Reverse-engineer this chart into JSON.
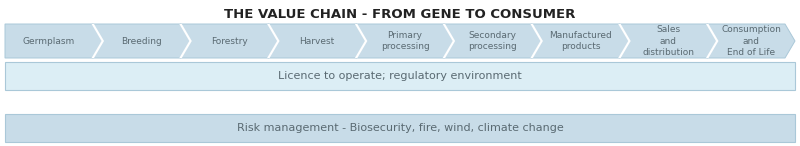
{
  "title": "THE VALUE CHAIN - FROM GENE TO CONSUMER",
  "title_fontsize": 9.5,
  "title_fontweight": "bold",
  "arrow_labels": [
    "Germplasm",
    "Breeding",
    "Forestry",
    "Harvest",
    "Primary\nprocessing",
    "Secondary\nprocessing",
    "Manufactured\nproducts",
    "Sales\nand\ndistribution",
    "Consumption\nand\nEnd of Life"
  ],
  "bar1_text": "Licence to operate; regulatory environment",
  "bar2_text": "Risk management - Biosecurity, fire, wind, climate change",
  "arrow_fill": "#c8dce8",
  "arrow_edge": "#aac8d8",
  "bar1_fill": "#dceef5",
  "bar2_fill": "#c8dce8",
  "text_color": "#5a6a72",
  "bar_text_color": "#5a6a72",
  "background": "#ffffff",
  "label_fontsize": 6.5,
  "bar_fontsize": 8.0,
  "title_color": "#222222"
}
